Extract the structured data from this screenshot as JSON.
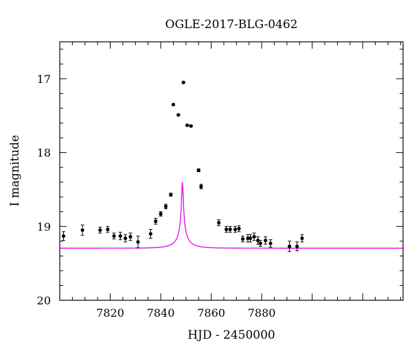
{
  "chart_data": {
    "type": "scatter",
    "title": "OGLE-2017-BLG-0462",
    "xlabel": "HJD - 2450000",
    "ylabel": "I magnitude",
    "xlim": [
      7800,
      7936
    ],
    "ylim": [
      20,
      16.5
    ],
    "y_inverted": true,
    "xticks": [
      7820,
      7840,
      7860,
      7880
    ],
    "yticks": [
      17,
      18,
      19,
      20
    ],
    "grid": false,
    "marker_color": "#000000",
    "model_color": "#e600e6",
    "observations": {
      "x": [
        7801.5,
        7809,
        7816,
        7819,
        7821.5,
        7824,
        7826,
        7828,
        7831,
        7836,
        7838,
        7840,
        7842,
        7844,
        7845,
        7847,
        7849,
        7850.5,
        7852,
        7855,
        7856,
        7863,
        7866,
        7867.5,
        7869.5,
        7871,
        7872.5,
        7874.5,
        7875.5,
        7877,
        7878.5,
        7879.5,
        7881.5,
        7883.5,
        7891,
        7894,
        7896
      ],
      "y": [
        19.13,
        19.05,
        19.05,
        19.04,
        19.13,
        19.13,
        19.16,
        19.14,
        19.21,
        19.1,
        18.93,
        18.83,
        18.73,
        18.57,
        17.35,
        17.49,
        17.05,
        17.63,
        17.64,
        18.24,
        18.46,
        18.95,
        19.04,
        19.04,
        19.04,
        19.03,
        19.17,
        19.16,
        19.16,
        19.14,
        19.19,
        19.23,
        19.19,
        19.23,
        19.27,
        19.27,
        19.16
      ],
      "err": [
        0.06,
        0.07,
        0.04,
        0.04,
        0.04,
        0.05,
        0.05,
        0.05,
        0.08,
        0.06,
        0.04,
        0.03,
        0.03,
        0.02,
        0.01,
        0.01,
        0.01,
        0.01,
        0.01,
        0.02,
        0.03,
        0.04,
        0.04,
        0.04,
        0.04,
        0.04,
        0.04,
        0.05,
        0.05,
        0.05,
        0.05,
        0.04,
        0.05,
        0.05,
        0.07,
        0.06,
        0.05
      ]
    },
    "model": {
      "t0": 7848.6,
      "tE": 7.2,
      "u0": 0.042,
      "fs": 0.0566,
      "baseline_flux": 1
    }
  }
}
